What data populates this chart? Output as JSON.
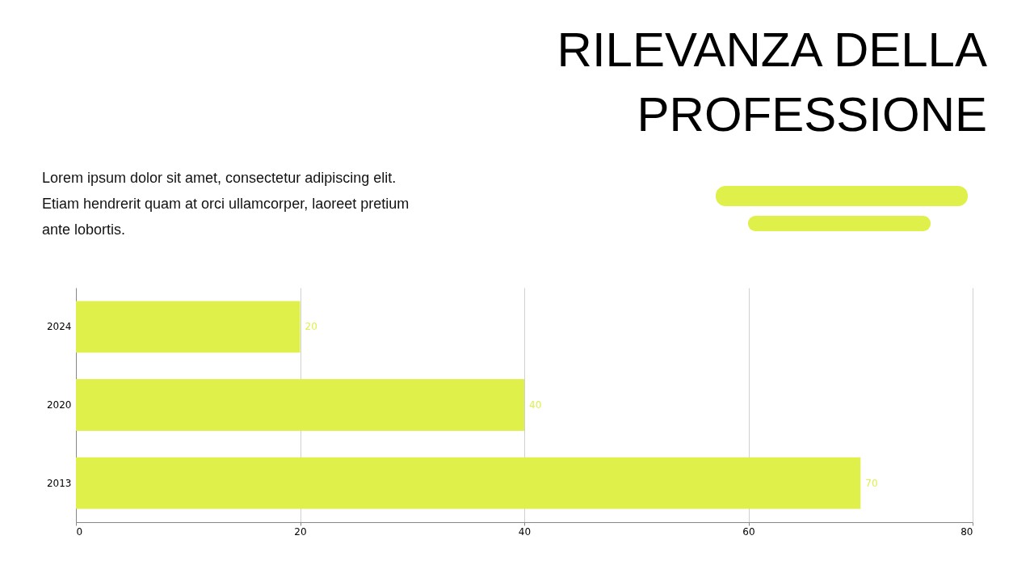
{
  "chart_data": {
    "type": "bar",
    "orientation": "horizontal",
    "title": "RILEVANZA DELLA PROFESSIONE",
    "subtitle": "Lorem ipsum dolor sit amet, consectetur adipiscing elit. Etiam hendrerit quam at orci ullamcorper, laoreet pretium ante lobortis.",
    "categories": [
      "2024",
      "2020",
      "2013"
    ],
    "values": [
      20,
      40,
      70
    ],
    "color": "#dff04a",
    "xlim": [
      0,
      80
    ],
    "xticks": [
      0,
      20,
      40,
      60,
      80
    ],
    "grid": "x",
    "data_labels": true
  }
}
